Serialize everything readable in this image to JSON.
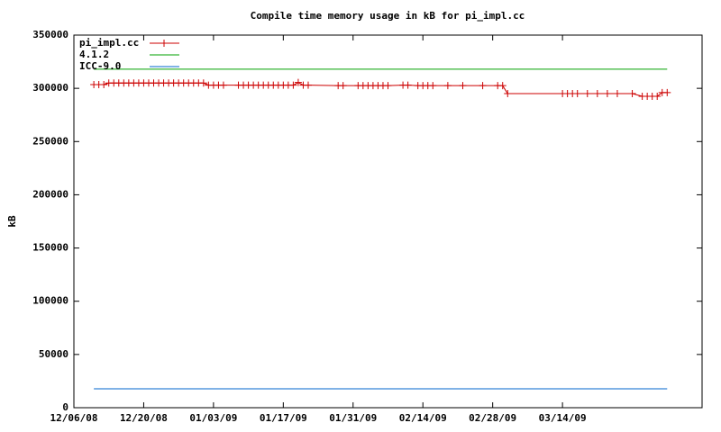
{
  "chart_data": {
    "type": "line",
    "title": "Compile time memory usage in kB for pi_impl.cc",
    "y_label": "kB",
    "legend": "top-left",
    "xlim": [
      "12/06/08",
      "04/11/09"
    ],
    "xticks": [
      "12/06/08",
      "12/20/08",
      "01/03/09",
      "01/17/09",
      "01/31/09",
      "02/14/09",
      "02/28/09",
      "03/14/09"
    ],
    "ylim": [
      0,
      350000
    ],
    "yticks": [
      0,
      50000,
      100000,
      150000,
      200000,
      250000,
      300000,
      350000
    ],
    "series": [
      {
        "name": "pi_impl.cc",
        "color": "#cc0000",
        "markers": true,
        "x": [
          "12/10/08",
          "12/11/08",
          "12/12/08",
          "12/13/08",
          "12/14/08",
          "12/15/08",
          "12/16/08",
          "12/17/08",
          "12/18/08",
          "12/19/08",
          "12/20/08",
          "12/21/08",
          "12/22/08",
          "12/23/08",
          "12/24/08",
          "12/25/08",
          "12/26/08",
          "12/27/08",
          "12/28/08",
          "12/29/08",
          "12/30/08",
          "12/31/08",
          "01/01/09",
          "01/02/09",
          "01/03/09",
          "01/04/09",
          "01/05/09",
          "01/08/09",
          "01/09/09",
          "01/10/09",
          "01/11/09",
          "01/12/09",
          "01/13/09",
          "01/14/09",
          "01/15/09",
          "01/16/09",
          "01/17/09",
          "01/18/09",
          "01/19/09",
          "01/20/09",
          "01/21/09",
          "01/22/09",
          "01/28/09",
          "01/29/09",
          "02/01/09",
          "02/02/09",
          "02/03/09",
          "02/04/09",
          "02/05/09",
          "02/06/09",
          "02/07/09",
          "02/10/09",
          "02/11/09",
          "02/13/09",
          "02/14/09",
          "02/15/09",
          "02/16/09",
          "02/19/09",
          "02/22/09",
          "02/26/09",
          "03/01/09",
          "03/02/09",
          "03/03/09",
          "03/14/09",
          "03/15/09",
          "03/16/09",
          "03/17/09",
          "03/19/09",
          "03/21/09",
          "03/23/09",
          "03/25/09",
          "03/28/09",
          "03/30/09",
          "03/31/09",
          "04/01/09",
          "04/02/09",
          "04/03/09",
          "04/04/09"
        ],
        "values": [
          303500,
          303500,
          303500,
          305000,
          305000,
          305000,
          305000,
          305000,
          305000,
          305000,
          305000,
          305000,
          305000,
          305000,
          305000,
          305000,
          305000,
          305000,
          305000,
          305000,
          305000,
          305000,
          305000,
          303000,
          303000,
          303000,
          303000,
          303000,
          303000,
          303000,
          303000,
          303000,
          303000,
          303000,
          303000,
          303000,
          303000,
          303000,
          303000,
          305500,
          303000,
          303000,
          302500,
          302500,
          302500,
          302500,
          302500,
          302500,
          302500,
          302500,
          302500,
          303000,
          303000,
          302500,
          302500,
          302500,
          302500,
          302500,
          302500,
          302500,
          302500,
          302500,
          295000,
          295000,
          295000,
          295000,
          295000,
          295000,
          295000,
          295000,
          295000,
          295000,
          292500,
          292500,
          292500,
          292500,
          296000,
          296000
        ]
      },
      {
        "name": "4.1.2",
        "color": "#00a000",
        "markers": false,
        "x": [
          "12/10/08",
          "04/04/09"
        ],
        "values": [
          318000,
          318000
        ]
      },
      {
        "name": "ICC-9.0",
        "color": "#0066cc",
        "markers": false,
        "x": [
          "12/10/08",
          "04/04/09"
        ],
        "values": [
          17800,
          17800
        ]
      }
    ]
  }
}
